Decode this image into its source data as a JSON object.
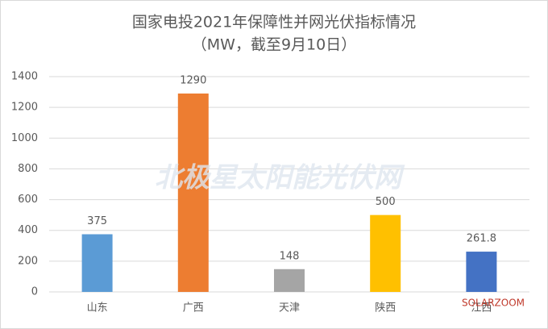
{
  "chart_data": {
    "type": "bar",
    "title": "国家电投2021年保障性并网光伏指标情况",
    "subtitle": "（MW，截至9月10日）",
    "categories": [
      "山东",
      "广西",
      "天津",
      "陕西",
      "江西"
    ],
    "values": [
      375,
      1290,
      148,
      500,
      261.8
    ],
    "colors": [
      "#5b9bd5",
      "#ed7d31",
      "#a5a5a5",
      "#ffc000",
      "#4472c4"
    ],
    "ylim": [
      0,
      1400
    ],
    "yticks": [
      0,
      200,
      400,
      600,
      800,
      1000,
      1200,
      1400
    ],
    "grid": true,
    "watermarks": [
      "北极星太阳能光伏网",
      "SOLARZOOM"
    ]
  }
}
